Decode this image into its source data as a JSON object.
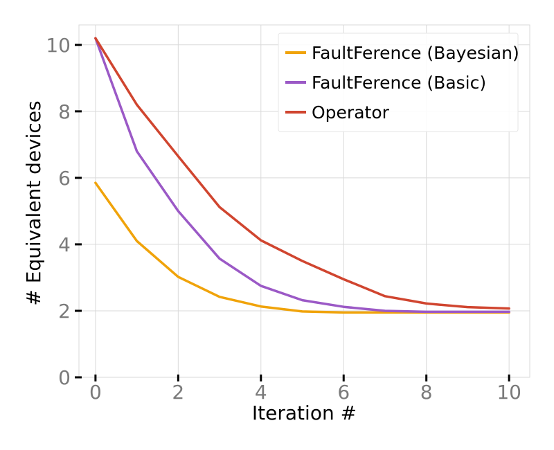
{
  "chart_data": {
    "type": "line",
    "xlabel": "Iteration #",
    "ylabel": "# Equivalent devices",
    "xlim": [
      -0.4,
      10.5
    ],
    "ylim": [
      0,
      10.6
    ],
    "xticks": [
      0,
      2,
      4,
      6,
      8,
      10
    ],
    "yticks": [
      0,
      2,
      4,
      6,
      8,
      10
    ],
    "xtick_labels": [
      "0",
      "2",
      "4",
      "6",
      "8",
      "10"
    ],
    "ytick_labels": [
      "0",
      "2",
      "4",
      "6",
      "8",
      "10"
    ],
    "grid": true,
    "legend_position": "top-right",
    "x": [
      0,
      1,
      2,
      3,
      4,
      5,
      6,
      7,
      8,
      9,
      10
    ],
    "series": [
      {
        "name": "FaultFerence (Bayesian)",
        "color": "#f0a30a",
        "values": [
          5.85,
          4.1,
          3.02,
          2.42,
          2.13,
          1.98,
          1.95,
          1.95,
          1.95,
          1.95,
          1.95
        ]
      },
      {
        "name": "FaultFerence (Basic)",
        "color": "#9b59c6",
        "values": [
          10.2,
          6.8,
          5.0,
          3.57,
          2.75,
          2.32,
          2.12,
          2.0,
          1.97,
          1.97,
          1.97
        ]
      },
      {
        "name": "Operator",
        "color": "#d0452f",
        "values": [
          10.2,
          8.2,
          6.65,
          5.12,
          4.12,
          3.5,
          2.95,
          2.44,
          2.22,
          2.11,
          2.07
        ]
      }
    ]
  }
}
